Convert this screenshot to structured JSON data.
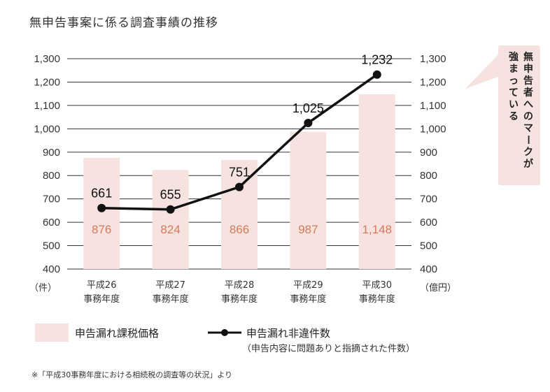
{
  "chart_data": {
    "type": "bar+line",
    "title": "無申告事案に係る調査事績の推移",
    "categories": [
      [
        "平成26",
        "事務年度"
      ],
      [
        "平成27",
        "事務年度"
      ],
      [
        "平成28",
        "事務年度"
      ],
      [
        "平成29",
        "事務年度"
      ],
      [
        "平成30",
        "事務年度"
      ]
    ],
    "y_ticks": [
      "1,300",
      "1,200",
      "1,100",
      "1,000",
      "900",
      "800",
      "700",
      "600",
      "500",
      "400"
    ],
    "ylim": [
      400,
      1300
    ],
    "left_unit": "（件）",
    "right_unit": "（億円）",
    "series": [
      {
        "name": "申告漏れ課税価格",
        "kind": "bar",
        "values": [
          876,
          824,
          866,
          987,
          1148
        ],
        "labels": [
          "876",
          "824",
          "866",
          "987",
          "1,148"
        ],
        "color": "#f6e3df",
        "label_color": "#d27a5c"
      },
      {
        "name": "申告漏れ非違件数",
        "kind": "line",
        "values": [
          661,
          655,
          751,
          1025,
          1232
        ],
        "labels": [
          "661",
          "655",
          "751",
          "1,025",
          "1,232"
        ],
        "color": "#111111"
      }
    ],
    "legend": {
      "bar_label": "申告漏れ課税価格",
      "line_label": "申告漏れ非違件数",
      "line_sublabel": "（申告内容に問題ありと指摘された件数）"
    },
    "note": "※「平成30事務年度における相続税の調査等の状況」より",
    "callout": {
      "lines": [
        "無申告者へのマークが",
        "強まっている"
      ],
      "color": "#f6e3df"
    }
  }
}
